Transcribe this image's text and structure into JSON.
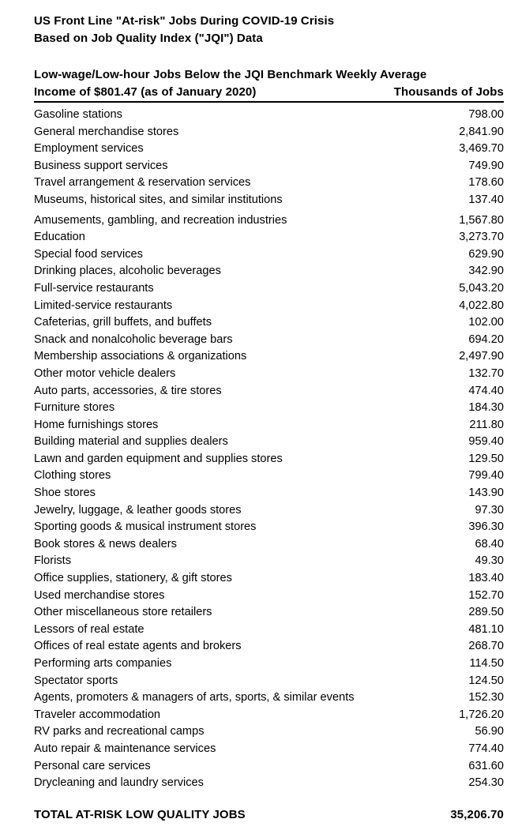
{
  "page": {
    "title_line1": "US Front Line \"At-risk\" Jobs During COVID-19 Crisis",
    "title_line2": "Based on Job Quality Index (\"JQI\") Data"
  },
  "table": {
    "subtitle": "Low-wage/Low-hour Jobs Below the JQI Benchmark Weekly Average",
    "header_left": "Income of $801.47 (as of January 2020)",
    "header_right": "Thousands of Jobs",
    "rows": [
      {
        "label": "Gasoline stations",
        "value": "798.00"
      },
      {
        "label": "General merchandise stores",
        "value": "2,841.90"
      },
      {
        "label": "Employment services",
        "value": "3,469.70"
      },
      {
        "label": "Business support services",
        "value": "749.90"
      },
      {
        "label": "Travel arrangement & reservation services",
        "value": "178.60"
      },
      {
        "label": "Museums, historical sites, and similar institutions",
        "value": "137.40"
      },
      {
        "label": "Amusements, gambling, and recreation industries",
        "value": "1,567.80"
      },
      {
        "label": "Education",
        "value": "3,273.70"
      },
      {
        "label": "Special food services",
        "value": "629.90"
      },
      {
        "label": "Drinking places, alcoholic beverages",
        "value": "342.90"
      },
      {
        "label": "Full-service restaurants",
        "value": "5,043.20"
      },
      {
        "label": "Limited-service restaurants",
        "value": "4,022.80"
      },
      {
        "label": "Cafeterias, grill buffets, and buffets",
        "value": "102.00"
      },
      {
        "label": "Snack and nonalcoholic beverage bars",
        "value": "694.20"
      },
      {
        "label": "Membership associations & organizations",
        "value": "2,497.90"
      },
      {
        "label": "Other motor vehicle dealers",
        "value": "132.70"
      },
      {
        "label": "Auto parts, accessories, & tire stores",
        "value": "474.40"
      },
      {
        "label": "Furniture stores",
        "value": "184.30"
      },
      {
        "label": "Home furnishings stores",
        "value": "211.80"
      },
      {
        "label": "Building material and supplies dealers",
        "value": "959.40"
      },
      {
        "label": "Lawn and garden equipment and supplies stores",
        "value": "129.50"
      },
      {
        "label": "Clothing stores",
        "value": "799.40"
      },
      {
        "label": "Shoe stores",
        "value": "143.90"
      },
      {
        "label": "Jewelry, luggage, & leather goods stores",
        "value": "97.30"
      },
      {
        "label": "Sporting goods & musical instrument stores",
        "value": "396.30"
      },
      {
        "label": "Book stores & news dealers",
        "value": "68.40"
      },
      {
        "label": "Florists",
        "value": "49.30"
      },
      {
        "label": "Office supplies, stationery, & gift stores",
        "value": "183.40"
      },
      {
        "label": "Used merchandise stores",
        "value": "152.70"
      },
      {
        "label": "Other miscellaneous store retailers",
        "value": "289.50"
      },
      {
        "label": "Lessors of real estate",
        "value": "481.10"
      },
      {
        "label": "Offices of real estate agents and brokers",
        "value": "268.70"
      },
      {
        "label": "Performing arts companies",
        "value": "114.50"
      },
      {
        "label": "Spectator sports",
        "value": "124.50"
      },
      {
        "label": "Agents, promoters & managers of arts, sports, & similar events",
        "value": "152.30"
      },
      {
        "label": "Traveler accommodation",
        "value": "1,726.20"
      },
      {
        "label": "RV parks and recreational camps",
        "value": "56.90"
      },
      {
        "label": "Auto repair & maintenance services",
        "value": "774.40"
      },
      {
        "label": "Personal care services",
        "value": "631.60"
      },
      {
        "label": "Drycleaning and laundry services",
        "value": "254.30"
      }
    ],
    "total": {
      "label": "TOTAL AT-RISK LOW QUALITY JOBS",
      "value": "35,206.70"
    }
  }
}
